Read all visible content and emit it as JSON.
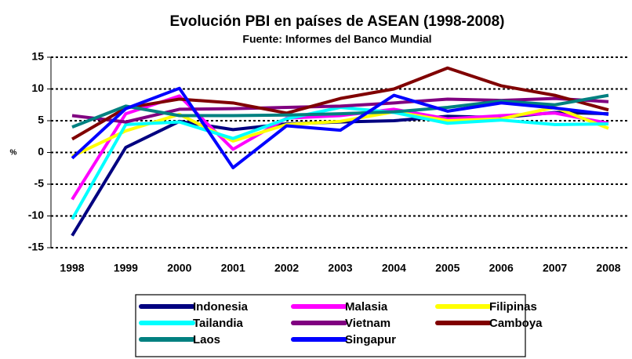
{
  "chart_data": {
    "type": "line",
    "title": "Evolución PBI en países de ASEAN (1998-2008)",
    "subtitle": "Fuente: Informes del Banco Mundial",
    "y_label": "%",
    "categories": [
      "1998",
      "1999",
      "2000",
      "2001",
      "2002",
      "2003",
      "2004",
      "2005",
      "2006",
      "2007",
      "2008"
    ],
    "ylim": [
      -15,
      15
    ],
    "yticks": [
      -15,
      -10,
      -5,
      0,
      5,
      10,
      15
    ],
    "grid": true,
    "legend": "bottom",
    "series": [
      {
        "name": "Indonesia",
        "color": "#000080",
        "values": [
          -13.1,
          0.8,
          4.9,
          3.6,
          4.5,
          4.8,
          5.0,
          5.7,
          5.5,
          6.3,
          6.1
        ]
      },
      {
        "name": "Malasia",
        "color": "#ff00ff",
        "values": [
          -7.4,
          6.1,
          8.9,
          0.5,
          5.4,
          5.8,
          6.8,
          5.3,
          5.8,
          6.2,
          4.6
        ]
      },
      {
        "name": "Filipinas",
        "color": "#ffff00",
        "values": [
          -0.6,
          3.4,
          6.0,
          1.8,
          4.4,
          4.9,
          6.4,
          5.0,
          5.3,
          7.1,
          3.8
        ]
      },
      {
        "name": "Tailandia",
        "color": "#00ffff",
        "values": [
          -10.5,
          4.4,
          4.8,
          2.2,
          5.3,
          7.1,
          6.3,
          4.6,
          5.1,
          4.4,
          4.5
        ]
      },
      {
        "name": "Vietnam",
        "color": "#800080",
        "values": [
          5.8,
          4.8,
          6.8,
          6.9,
          7.1,
          7.3,
          7.8,
          8.4,
          8.2,
          8.5,
          8.0
        ]
      },
      {
        "name": "Camboya",
        "color": "#800000",
        "values": [
          2.1,
          7.0,
          8.4,
          7.8,
          6.2,
          8.5,
          10.0,
          13.3,
          10.5,
          9.0,
          6.7
        ]
      },
      {
        "name": "Laos",
        "color": "#008080",
        "values": [
          4.0,
          7.3,
          5.8,
          5.8,
          5.9,
          6.1,
          6.4,
          7.1,
          8.1,
          7.5,
          9.0
        ]
      },
      {
        "name": "Singapur",
        "color": "#0000ff",
        "values": [
          -0.9,
          6.9,
          10.1,
          -2.4,
          4.2,
          3.5,
          9.0,
          6.5,
          7.8,
          7.0,
          6.0
        ]
      }
    ]
  }
}
